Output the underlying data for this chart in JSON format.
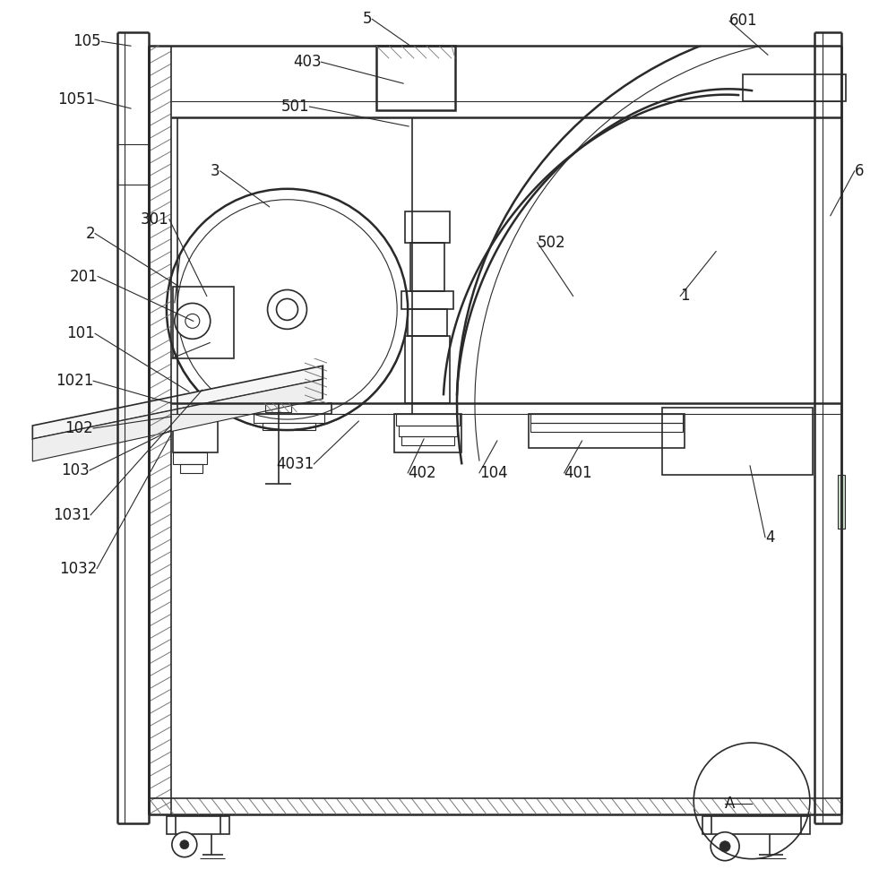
{
  "bg_color": "#ffffff",
  "line_color": "#2a2a2a",
  "label_color": "#1a1a1a",
  "font_size": 12,
  "fig_w": 10.0,
  "fig_h": 9.8
}
